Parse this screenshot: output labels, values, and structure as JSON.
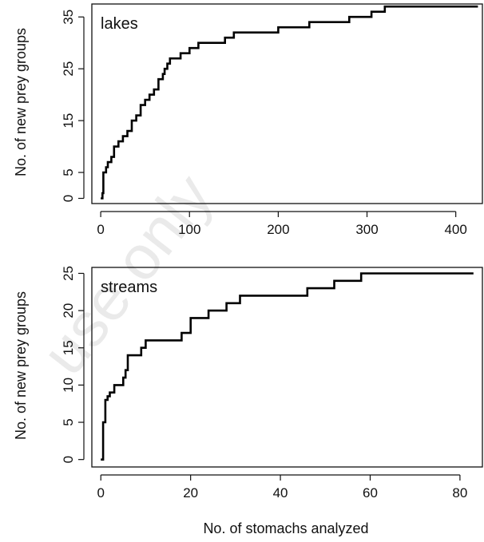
{
  "watermark": "use only",
  "chart_data": [
    {
      "type": "line",
      "panel_label": "lakes",
      "xlabel": "",
      "ylabel": "No. of new prey groups",
      "xlim": [
        -10,
        430
      ],
      "ylim": [
        -1,
        37.5
      ],
      "xticks": [
        0,
        100,
        200,
        300,
        400
      ],
      "yticks": [
        0,
        5,
        15,
        25,
        35
      ],
      "series": [
        {
          "x": [
            0,
            2,
            3,
            6,
            8,
            12,
            15,
            20,
            25,
            30,
            35,
            40,
            45,
            50,
            55,
            60,
            65,
            70,
            72,
            75,
            78,
            85,
            90,
            100,
            110,
            120,
            130,
            140,
            150,
            175,
            200,
            220,
            235,
            260,
            280,
            305,
            320,
            425
          ],
          "y": [
            0,
            1,
            5,
            6,
            7,
            8,
            10,
            11,
            12,
            13,
            15,
            16,
            18,
            19,
            20,
            21,
            23,
            24,
            25,
            26,
            27,
            27,
            28,
            29,
            30,
            30,
            30,
            31,
            32,
            32,
            33,
            33,
            34,
            34,
            35,
            36,
            37,
            37
          ]
        }
      ]
    },
    {
      "type": "line",
      "panel_label": "streams",
      "xlabel": "No. of stomachs analyzed",
      "ylabel": "No. of new prey groups",
      "xlim": [
        -2,
        85
      ],
      "ylim": [
        -1,
        25.8
      ],
      "xticks": [
        0,
        20,
        40,
        60,
        80
      ],
      "yticks": [
        0,
        5,
        10,
        15,
        20,
        25
      ],
      "series": [
        {
          "x": [
            0,
            0.5,
            1,
            1.5,
            2,
            3,
            4,
            5,
            5.5,
            6,
            8,
            9,
            10,
            14,
            15,
            17,
            18,
            20,
            23,
            24,
            27,
            28,
            30,
            31,
            35,
            40,
            46,
            48,
            52,
            54,
            57,
            58,
            83
          ],
          "y": [
            0,
            5,
            8,
            8.5,
            9,
            10,
            10,
            11,
            12,
            14,
            14,
            15,
            16,
            16,
            16,
            16,
            17,
            19,
            19,
            20,
            20,
            21,
            21,
            22,
            22,
            22,
            23,
            23,
            24,
            24,
            24,
            25,
            25
          ]
        }
      ]
    }
  ]
}
